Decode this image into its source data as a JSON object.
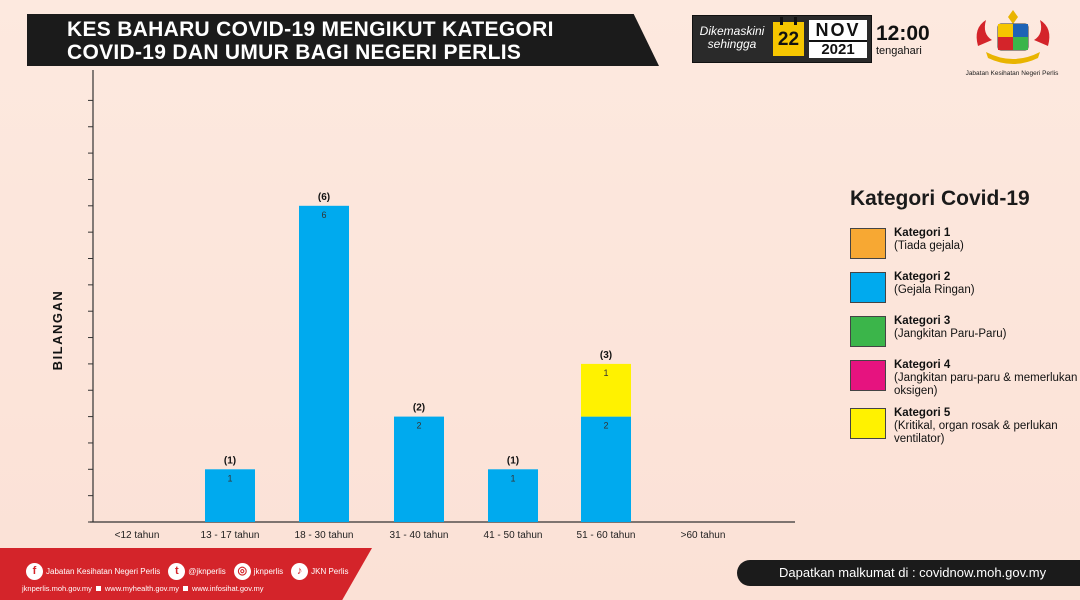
{
  "header": {
    "title_line1": "KES BAHARU COVID-19 MENGIKUT KATEGORI",
    "title_line2": "COVID-19 DAN UMUR BAGI NEGERI PERLIS"
  },
  "update": {
    "label_line1": "Dikemaskini",
    "label_line2": "sehingga",
    "day": "22",
    "month": "NOV",
    "year": "2021",
    "time": "12:00",
    "time_suffix": "tengahari"
  },
  "crest": {
    "label": "Jabatan Kesihatan Negeri Perlis"
  },
  "chart_data": {
    "type": "bar",
    "stacked": true,
    "ylabel": "BILANGAN",
    "categories": [
      "<12 tahun",
      "13 - 17 tahun",
      "18 - 30 tahun",
      "31 - 40 tahun",
      "41 - 50 tahun",
      "51 - 60 tahun",
      ">60 tahun"
    ],
    "totals_display": [
      "",
      "(1)",
      "(6)",
      "(2)",
      "(1)",
      "(3)",
      ""
    ],
    "series": [
      {
        "name": "Kategori 1",
        "color": "#f7a833",
        "values": [
          0,
          0,
          0,
          0,
          0,
          0,
          0
        ]
      },
      {
        "name": "Kategori 2",
        "color": "#00aaee",
        "values": [
          0,
          1,
          6,
          2,
          1,
          2,
          0
        ]
      },
      {
        "name": "Kategori 3",
        "color": "#3bb54a",
        "values": [
          0,
          0,
          0,
          0,
          0,
          0,
          0
        ]
      },
      {
        "name": "Kategori 4",
        "color": "#e6137f",
        "values": [
          0,
          0,
          0,
          0,
          0,
          0,
          0
        ]
      },
      {
        "name": "Kategori 5",
        "color": "#fff200",
        "values": [
          0,
          0,
          0,
          0,
          0,
          1,
          0
        ]
      }
    ],
    "ylim": [
      0,
      8
    ],
    "grid": false,
    "legend_placement": "right"
  },
  "legend": {
    "title": "Kategori Covid-19",
    "items": [
      {
        "name": "Kategori 1",
        "desc": "(Tiada gejala)",
        "color": "#f7a833"
      },
      {
        "name": "Kategori 2",
        "desc": "(Gejala Ringan)",
        "color": "#00aaee"
      },
      {
        "name": "Kategori 3",
        "desc": "(Jangkitan Paru-Paru)",
        "color": "#3bb54a"
      },
      {
        "name": "Kategori 4",
        "desc": "(Jangkitan paru-paru & memerlukan oksigen)",
        "color": "#e6137f"
      },
      {
        "name": "Kategori 5",
        "desc": "(Kritikal, organ rosak & perlukan ventilator)",
        "color": "#fff200"
      }
    ]
  },
  "footer": {
    "socials": [
      {
        "icon": "facebook-icon",
        "glyph": "f",
        "label": "Jabatan Kesihatan Negeri Perlis"
      },
      {
        "icon": "twitter-icon",
        "glyph": "t",
        "label": "@jknperlis"
      },
      {
        "icon": "instagram-icon",
        "glyph": "◎",
        "label": "jknperlis"
      },
      {
        "icon": "tiktok-icon",
        "glyph": "♪",
        "label": "JKN Perlis"
      }
    ],
    "sites": [
      "jknperlis.moh.gov.my",
      "www.myhealth.gov.my",
      "www.infosihat.gov.my"
    ],
    "info": "Dapatkan malkumat di : covidnow.moh.gov.my"
  }
}
